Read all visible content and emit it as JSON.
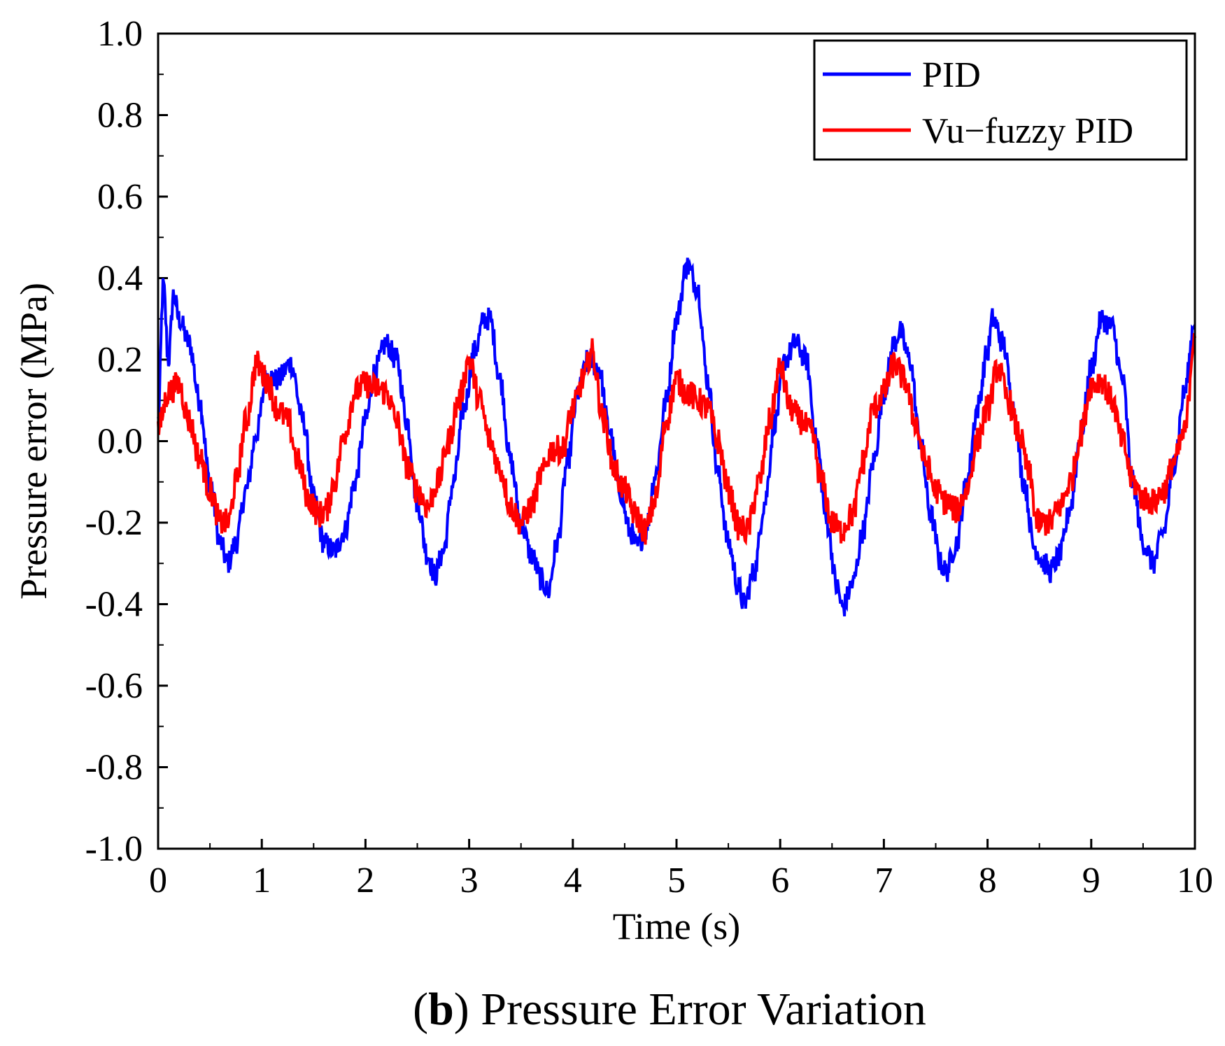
{
  "chart_data": {
    "type": "line",
    "caption_prefix_open": "(",
    "caption_letter": "b",
    "caption_rest": ") Pressure Error Variation",
    "xlabel": "Time (s)",
    "ylabel": "Pressure error (MPa)",
    "xlim": [
      0,
      10
    ],
    "ylim": [
      -1.0,
      1.0
    ],
    "xticks": [
      "0",
      "1",
      "2",
      "3",
      "4",
      "5",
      "6",
      "7",
      "8",
      "9",
      "10"
    ],
    "yticks": [
      "1.0",
      "0.8",
      "0.6",
      "0.4",
      "0.2",
      "0.0",
      "-0.2",
      "-0.4",
      "-0.6",
      "-0.8",
      "-1.0"
    ],
    "legend_position": "top-right",
    "series": [
      {
        "name": "PID",
        "color": "#0000ff",
        "noise": 0.03,
        "x": [
          0,
          0.05,
          0.1,
          0.15,
          0.2,
          0.3,
          0.4,
          0.5,
          0.6,
          0.67,
          0.75,
          0.85,
          0.95,
          1.05,
          1.15,
          1.28,
          1.4,
          1.5,
          1.6,
          1.7,
          1.8,
          1.9,
          2.0,
          2.1,
          2.2,
          2.3,
          2.4,
          2.5,
          2.6,
          2.67,
          2.75,
          2.85,
          2.95,
          3.05,
          3.15,
          3.2,
          3.3,
          3.4,
          3.5,
          3.6,
          3.7,
          3.76,
          3.85,
          3.95,
          4.05,
          4.15,
          4.25,
          4.35,
          4.45,
          4.55,
          4.62,
          4.7,
          4.8,
          4.9,
          5.0,
          5.1,
          5.2,
          5.3,
          5.4,
          5.5,
          5.6,
          5.65,
          5.75,
          5.85,
          5.95,
          6.05,
          6.15,
          6.25,
          6.35,
          6.45,
          6.55,
          6.6,
          6.7,
          6.8,
          6.9,
          7.0,
          7.1,
          7.15,
          7.25,
          7.35,
          7.45,
          7.55,
          7.6,
          7.7,
          7.8,
          7.9,
          8.0,
          8.05,
          8.15,
          8.25,
          8.35,
          8.45,
          8.55,
          8.6,
          8.7,
          8.8,
          8.9,
          9.0,
          9.1,
          9.2,
          9.3,
          9.4,
          9.5,
          9.6,
          9.7,
          9.8,
          9.9,
          10.0
        ],
        "y": [
          0.05,
          0.38,
          0.2,
          0.36,
          0.3,
          0.24,
          0.1,
          -0.1,
          -0.25,
          -0.3,
          -0.25,
          -0.12,
          0.02,
          0.16,
          0.15,
          0.19,
          0.05,
          -0.14,
          -0.25,
          -0.27,
          -0.22,
          -0.1,
          0.05,
          0.18,
          0.24,
          0.2,
          0.05,
          -0.15,
          -0.28,
          -0.33,
          -0.27,
          -0.1,
          0.08,
          0.22,
          0.3,
          0.3,
          0.15,
          -0.05,
          -0.2,
          -0.28,
          -0.34,
          -0.37,
          -0.25,
          -0.05,
          0.12,
          0.2,
          0.18,
          0.03,
          -0.12,
          -0.22,
          -0.26,
          -0.22,
          -0.08,
          0.1,
          0.3,
          0.43,
          0.38,
          0.15,
          -0.08,
          -0.25,
          -0.36,
          -0.4,
          -0.32,
          -0.15,
          0.05,
          0.2,
          0.24,
          0.2,
          0.0,
          -0.2,
          -0.36,
          -0.41,
          -0.35,
          -0.22,
          -0.05,
          0.12,
          0.24,
          0.27,
          0.2,
          0.0,
          -0.18,
          -0.3,
          -0.32,
          -0.25,
          -0.1,
          0.08,
          0.22,
          0.3,
          0.24,
          0.08,
          -0.1,
          -0.26,
          -0.3,
          -0.32,
          -0.28,
          -0.16,
          0.02,
          0.18,
          0.3,
          0.28,
          0.15,
          -0.1,
          -0.25,
          -0.3,
          -0.22,
          -0.05,
          0.12,
          0.3
        ]
      },
      {
        "name": "Vu−fuzzy PID",
        "color": "#ff0000",
        "noise": 0.035,
        "x": [
          0,
          0.1,
          0.2,
          0.3,
          0.4,
          0.5,
          0.6,
          0.68,
          0.75,
          0.85,
          0.95,
          1.05,
          1.15,
          1.25,
          1.35,
          1.45,
          1.55,
          1.62,
          1.7,
          1.8,
          1.9,
          2.0,
          2.1,
          2.2,
          2.3,
          2.4,
          2.5,
          2.6,
          2.7,
          2.8,
          2.9,
          3.0,
          3.1,
          3.2,
          3.3,
          3.4,
          3.5,
          3.6,
          3.7,
          3.8,
          3.9,
          4.0,
          4.1,
          4.18,
          4.3,
          4.4,
          4.5,
          4.6,
          4.7,
          4.8,
          4.9,
          5.0,
          5.1,
          5.2,
          5.3,
          5.4,
          5.5,
          5.6,
          5.68,
          5.8,
          5.9,
          6.0,
          6.1,
          6.2,
          6.3,
          6.4,
          6.5,
          6.58,
          6.7,
          6.8,
          6.9,
          7.0,
          7.1,
          7.2,
          7.3,
          7.4,
          7.5,
          7.6,
          7.7,
          7.8,
          7.9,
          8.0,
          8.1,
          8.2,
          8.3,
          8.4,
          8.48,
          8.6,
          8.7,
          8.8,
          8.9,
          9.0,
          9.1,
          9.2,
          9.3,
          9.4,
          9.5,
          9.6,
          9.7,
          9.8,
          9.9,
          10.0
        ],
        "y": [
          0.03,
          0.12,
          0.14,
          0.05,
          -0.04,
          -0.12,
          -0.2,
          -0.2,
          -0.1,
          0.05,
          0.19,
          0.15,
          0.08,
          0.05,
          -0.05,
          -0.14,
          -0.18,
          -0.17,
          -0.1,
          0.02,
          0.12,
          0.14,
          0.13,
          0.12,
          0.05,
          -0.06,
          -0.12,
          -0.16,
          -0.1,
          0.0,
          0.1,
          0.2,
          0.1,
          0.0,
          -0.07,
          -0.16,
          -0.2,
          -0.16,
          -0.08,
          -0.02,
          -0.02,
          0.08,
          0.15,
          0.22,
          0.05,
          -0.07,
          -0.12,
          -0.18,
          -0.22,
          -0.14,
          0.05,
          0.15,
          0.12,
          0.1,
          0.08,
          0.0,
          -0.12,
          -0.21,
          -0.22,
          -0.1,
          0.05,
          0.18,
          0.08,
          0.05,
          0.02,
          -0.1,
          -0.2,
          -0.22,
          -0.18,
          -0.05,
          0.08,
          0.12,
          0.19,
          0.15,
          0.05,
          -0.05,
          -0.12,
          -0.15,
          -0.17,
          -0.12,
          0.0,
          0.08,
          0.18,
          0.1,
          0.02,
          -0.08,
          -0.2,
          -0.2,
          -0.16,
          -0.1,
          0.02,
          0.14,
          0.15,
          0.1,
          0.0,
          -0.1,
          -0.14,
          -0.15,
          -0.12,
          -0.05,
          0.02,
          0.27
        ]
      }
    ]
  }
}
